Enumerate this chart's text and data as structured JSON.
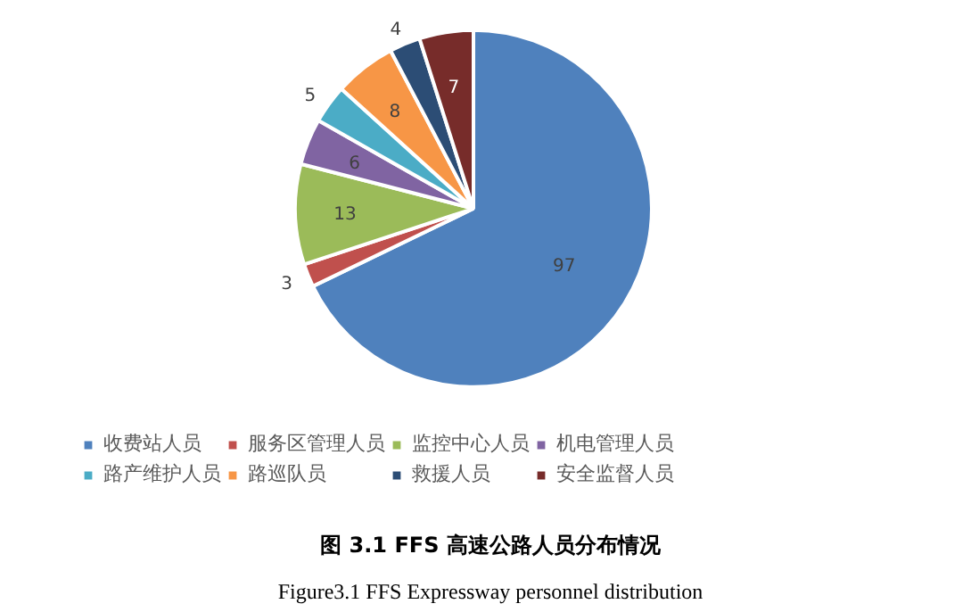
{
  "chart_data": {
    "type": "pie",
    "title": "图 3.1 FFS 高速公路人员分布情况",
    "subtitle": "Figure3.1 FFS Expressway personnel distribution",
    "categories": [
      "收费站人员",
      "服务区管理人员",
      "监控中心人员",
      "机电管理人员",
      "路产维护人员",
      "路巡队员",
      "救援人员",
      "安全监督人员"
    ],
    "values": [
      97,
      3,
      13,
      6,
      5,
      8,
      4,
      7
    ],
    "colors": [
      "#4f81bd",
      "#c0504d",
      "#9bbb59",
      "#8064a2",
      "#4bacc6",
      "#f79646",
      "#2c4d75",
      "#772c2a"
    ],
    "data_labels": true,
    "legend": "bottom"
  }
}
